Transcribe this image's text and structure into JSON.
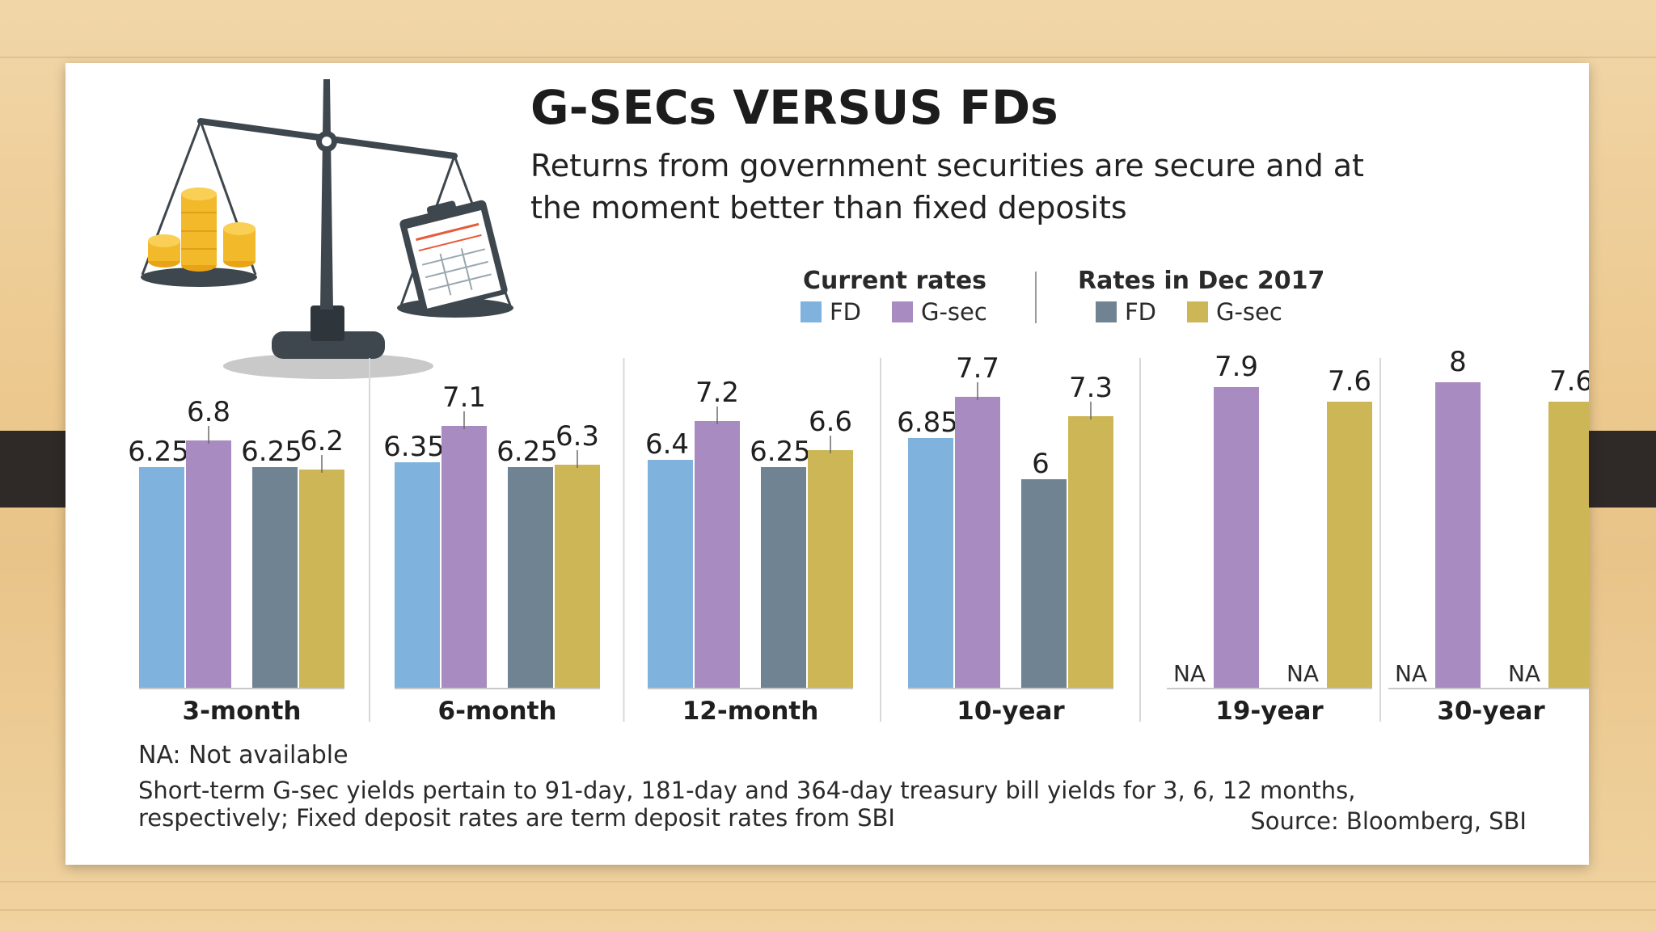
{
  "header": {
    "title": "G-SECs VERSUS FDs",
    "subtitle_line1": "Returns from government securities are secure and at",
    "subtitle_line2": "the moment better than fixed deposits"
  },
  "legend": {
    "groups": [
      {
        "title": "Current rates",
        "entries": [
          {
            "label": "FD",
            "color": "#7fb2dc"
          },
          {
            "label": "G-sec",
            "color": "#a88bc0"
          }
        ]
      },
      {
        "title": "Rates in Dec 2017",
        "entries": [
          {
            "label": "FD",
            "color": "#6f8392"
          },
          {
            "label": "G-sec",
            "color": "#cdb655"
          }
        ]
      }
    ]
  },
  "footer": {
    "na_note": "NA: Not available",
    "note_line1": "Short-term G-sec yields pertain to 91-day, 181-day and 364-day treasury bill yields for 3, 6, 12 months,",
    "note_line2": "respectively; Fixed deposit rates are term deposit rates from SBI",
    "source": "Source: Bloomberg, SBI"
  },
  "chart_data": {
    "type": "bar",
    "title": "G-SECs VERSUS FDs",
    "categories": [
      "3-month",
      "6-month",
      "12-month",
      "10-year",
      "19-year",
      "30-year"
    ],
    "na_label": "NA",
    "series": [
      {
        "name": "FD",
        "group": "Current rates",
        "color": "#7fb2dc",
        "values": [
          6.25,
          6.35,
          6.4,
          6.85,
          null,
          null
        ],
        "labels": [
          "6.25",
          "6.35",
          "6.4",
          "6.85",
          "NA",
          "NA"
        ]
      },
      {
        "name": "G-sec",
        "group": "Current rates",
        "color": "#a88bc0",
        "values": [
          6.8,
          7.1,
          7.2,
          7.7,
          7.9,
          8
        ],
        "labels": [
          "6.8",
          "7.1",
          "7.2",
          "7.7",
          "7.9",
          "8"
        ]
      },
      {
        "name": "FD",
        "group": "Rates in Dec 2017",
        "color": "#6f8392",
        "values": [
          6.25,
          6.25,
          6.25,
          6,
          null,
          null
        ],
        "labels": [
          "6.25",
          "6.25",
          "6.25",
          "6",
          "NA",
          "NA"
        ]
      },
      {
        "name": "G-sec",
        "group": "Rates in Dec 2017",
        "color": "#cdb655",
        "values": [
          6.2,
          6.3,
          6.6,
          7.3,
          7.6,
          7.6
        ],
        "labels": [
          "6.2",
          "6.3",
          "6.6",
          "7.3",
          "7.6",
          "7.6"
        ]
      }
    ],
    "grid": false
  }
}
